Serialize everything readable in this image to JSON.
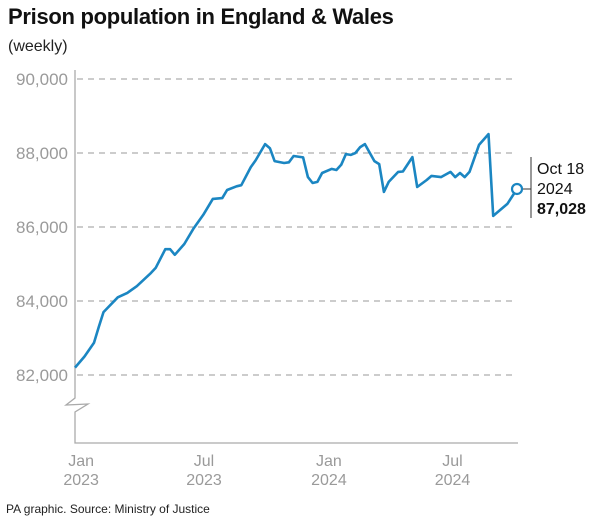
{
  "title": "Prison population in England & Wales",
  "subtitle": "(weekly)",
  "footer": "PA graphic. Source: Ministry of Justice",
  "chart_data": {
    "type": "line",
    "title": "Prison population in England & Wales",
    "ylim": [
      81000,
      90000
    ],
    "y_axis_break": true,
    "yticks": [
      82000,
      84000,
      86000,
      88000,
      90000
    ],
    "ytick_labels": [
      "82,000",
      "84,000",
      "86,000",
      "88,000",
      "90,000"
    ],
    "xticks": [
      {
        "date": "2023-01-15",
        "line1": "Jan",
        "line2": "2023"
      },
      {
        "date": "2023-07-15",
        "line1": "Jul",
        "line2": "2023"
      },
      {
        "date": "2024-01-15",
        "line1": "Jan",
        "line2": "2024"
      },
      {
        "date": "2024-07-15",
        "line1": "Jul",
        "line2": "2024"
      }
    ],
    "grid": "horizontal dashed",
    "color": "#1b86c2",
    "x": [
      "2023-01-06",
      "2023-01-20",
      "2023-02-03",
      "2023-02-10",
      "2023-02-17",
      "2023-03-10",
      "2023-03-24",
      "2023-04-07",
      "2023-04-28",
      "2023-05-05",
      "2023-05-19",
      "2023-05-26",
      "2023-06-02",
      "2023-06-16",
      "2023-06-30",
      "2023-07-14",
      "2023-07-28",
      "2023-08-11",
      "2023-08-18",
      "2023-09-01",
      "2023-09-08",
      "2023-09-22",
      "2023-09-29",
      "2023-10-13",
      "2023-10-20",
      "2023-10-27",
      "2023-11-10",
      "2023-11-17",
      "2023-11-24",
      "2023-12-08",
      "2023-12-15",
      "2023-12-22",
      "2023-12-29",
      "2024-01-05",
      "2024-01-19",
      "2024-01-26",
      "2024-02-02",
      "2024-02-09",
      "2024-02-16",
      "2024-02-23",
      "2024-03-01",
      "2024-03-08",
      "2024-03-22",
      "2024-03-29",
      "2024-04-05",
      "2024-04-12",
      "2024-04-26",
      "2024-05-03",
      "2024-05-17",
      "2024-05-24",
      "2024-06-07",
      "2024-06-14",
      "2024-06-28",
      "2024-07-12",
      "2024-07-19",
      "2024-07-26",
      "2024-08-02",
      "2024-08-09",
      "2024-08-23",
      "2024-09-06",
      "2024-09-13",
      "2024-10-04",
      "2024-10-18"
    ],
    "values": [
      82200,
      82500,
      82870,
      83300,
      83700,
      84100,
      84220,
      84400,
      84760,
      84900,
      85400,
      85400,
      85250,
      85540,
      85970,
      86330,
      86760,
      86780,
      87000,
      87100,
      87130,
      87620,
      87800,
      88240,
      88130,
      87780,
      87730,
      87750,
      87920,
      87880,
      87350,
      87190,
      87220,
      87460,
      87570,
      87540,
      87680,
      87970,
      87950,
      88000,
      88160,
      88240,
      87780,
      87700,
      86950,
      87220,
      87490,
      87500,
      87890,
      87080,
      87270,
      87380,
      87350,
      87490,
      87350,
      87460,
      87350,
      87490,
      88220,
      88510,
      86300,
      86630,
      87028
    ],
    "annotation": {
      "line1": "Oct 18",
      "line2": "2024",
      "value": "87,028"
    }
  }
}
